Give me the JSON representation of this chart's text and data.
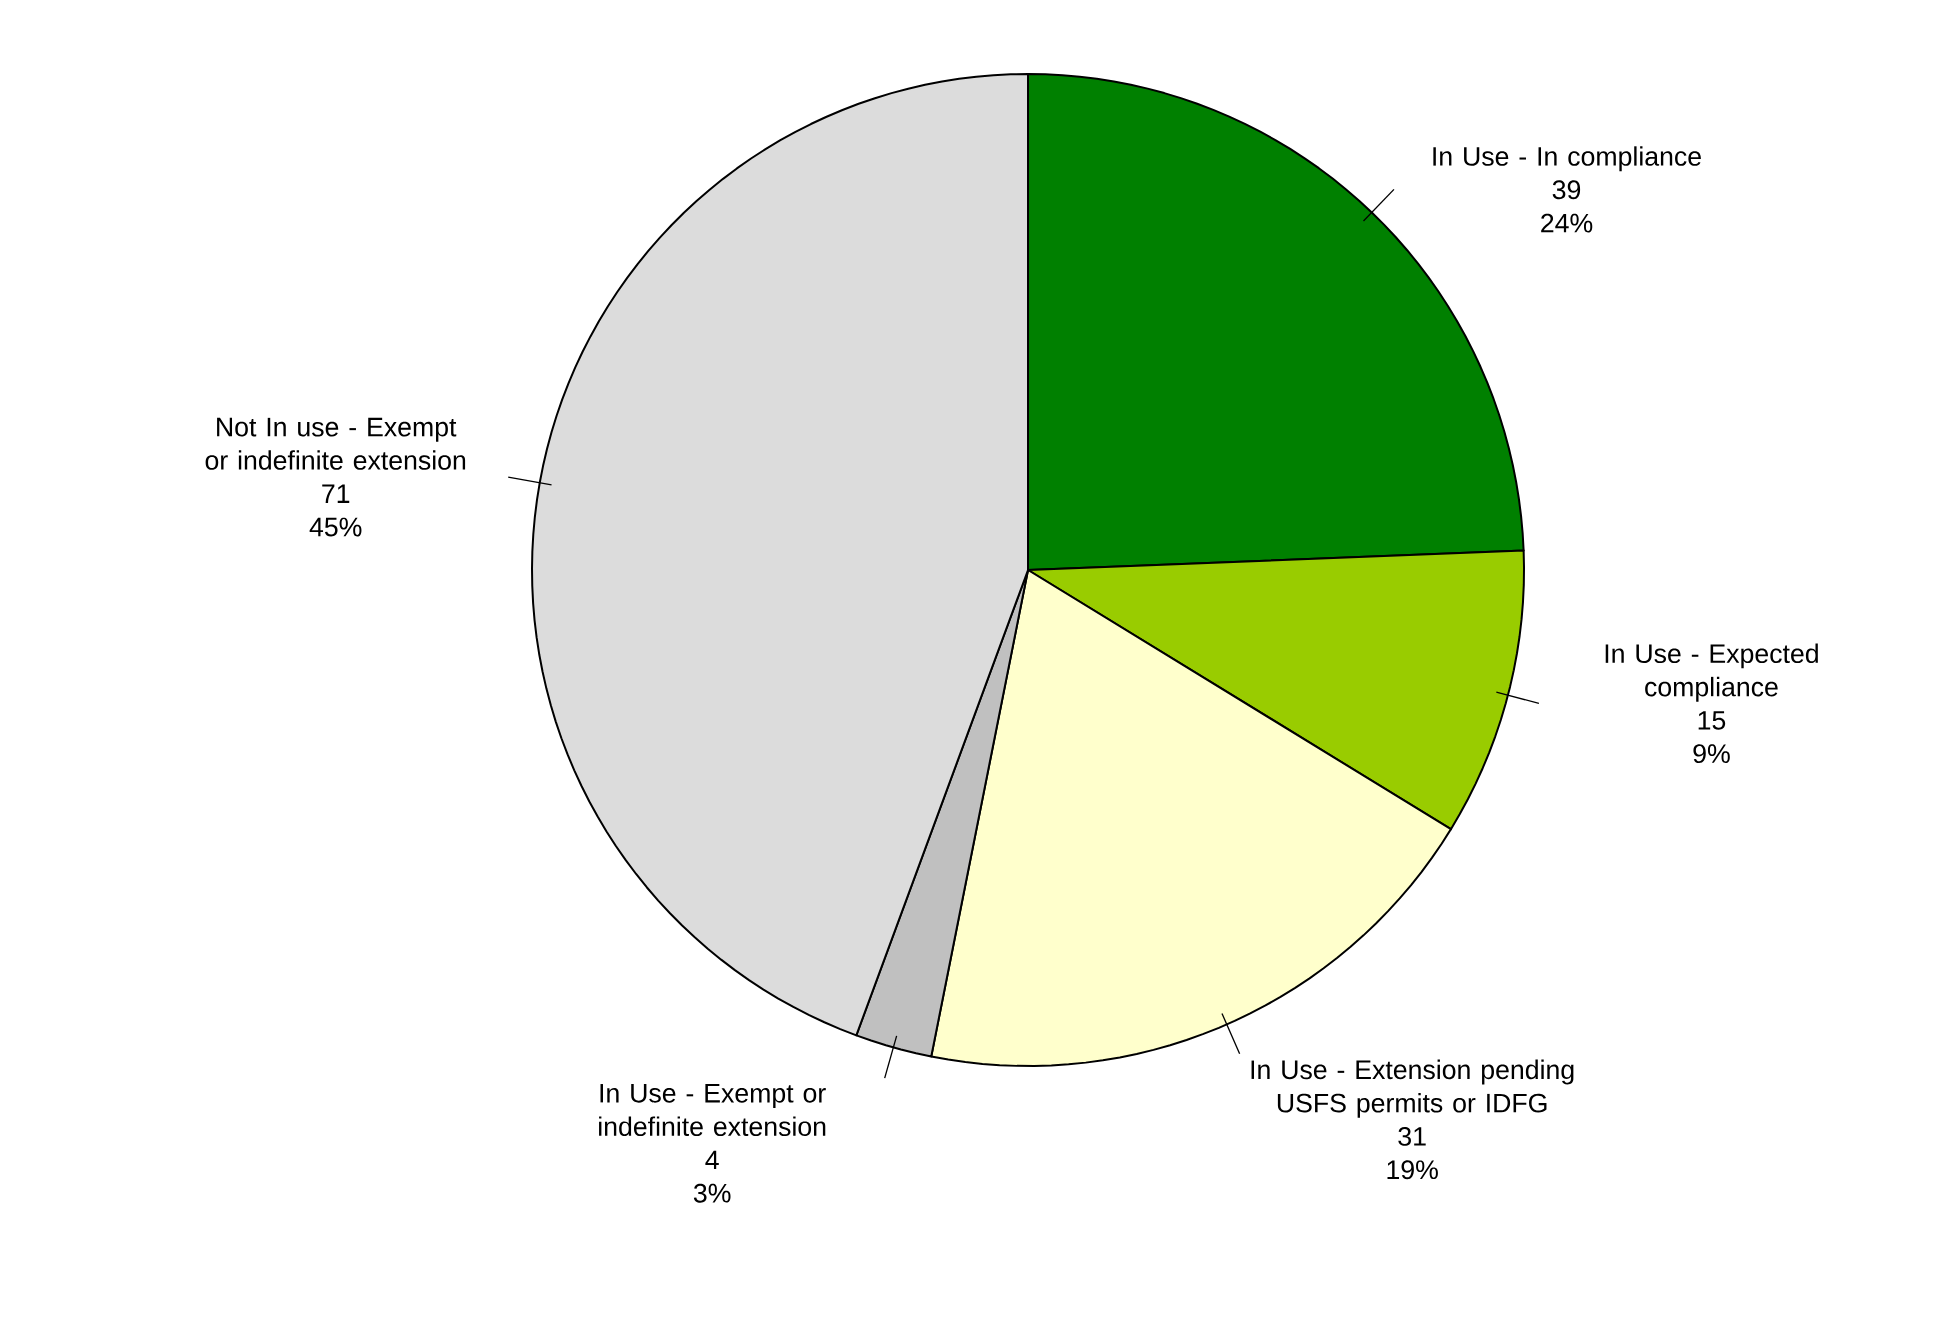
{
  "chart_data": {
    "type": "pie",
    "categories": [
      "In Use - In compliance",
      "In Use - Expected compliance",
      "In Use - Extension pending USFS permits or IDFG",
      "In Use - Exempt or indefinite extension",
      "Not In use - Exempt or indefinite extension"
    ],
    "values": [
      39,
      15,
      31,
      4,
      71
    ],
    "data_labels": true,
    "annotations": [
      "24%",
      "9%",
      "19%",
      "3%",
      "45%"
    ],
    "colors": [
      "#008000",
      "#99cc00",
      "#ffffcc",
      "#c0c0c0",
      "#dcdcdc"
    ]
  }
}
